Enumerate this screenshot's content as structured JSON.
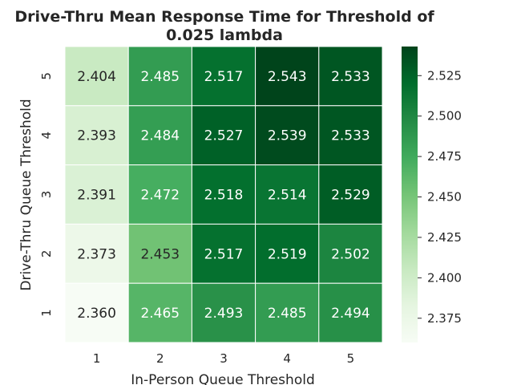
{
  "chart_data": {
    "type": "heatmap",
    "title_line1": "Drive-Thru Mean Response Time for Threshold of",
    "title_line2": "0.025 lambda",
    "xlabel": "In-Person Queue Threshold",
    "ylabel": "Drive-Thru Queue Threshold",
    "x_categories": [
      "1",
      "2",
      "3",
      "4",
      "5"
    ],
    "y_categories": [
      "5",
      "4",
      "3",
      "2",
      "1"
    ],
    "values": [
      [
        2.404,
        2.485,
        2.517,
        2.543,
        2.533
      ],
      [
        2.393,
        2.484,
        2.527,
        2.539,
        2.533
      ],
      [
        2.391,
        2.472,
        2.518,
        2.514,
        2.529
      ],
      [
        2.373,
        2.453,
        2.517,
        2.519,
        2.502
      ],
      [
        2.36,
        2.465,
        2.493,
        2.485,
        2.494
      ]
    ],
    "value_labels": [
      [
        "2.404",
        "2.485",
        "2.517",
        "2.543",
        "2.533"
      ],
      [
        "2.393",
        "2.484",
        "2.527",
        "2.539",
        "2.533"
      ],
      [
        "2.391",
        "2.472",
        "2.518",
        "2.514",
        "2.529"
      ],
      [
        "2.373",
        "2.453",
        "2.517",
        "2.519",
        "2.502"
      ],
      [
        "2.360",
        "2.465",
        "2.493",
        "2.485",
        "2.494"
      ]
    ],
    "colorbar": {
      "vmin": 2.36,
      "vmax": 2.543,
      "ticks": [
        2.375,
        2.4,
        2.425,
        2.45,
        2.475,
        2.5,
        2.525
      ],
      "tick_labels": [
        "2.375",
        "2.400",
        "2.425",
        "2.450",
        "2.475",
        "2.500",
        "2.525"
      ]
    },
    "colormap": "Greens",
    "colormap_stops": [
      "#f7fcf5",
      "#e5f5e0",
      "#c7e9c0",
      "#a1d99b",
      "#74c476",
      "#41ab5d",
      "#238b45",
      "#006d2c",
      "#00441b"
    ],
    "grid": false,
    "cell_border_color": "#ffffff"
  }
}
